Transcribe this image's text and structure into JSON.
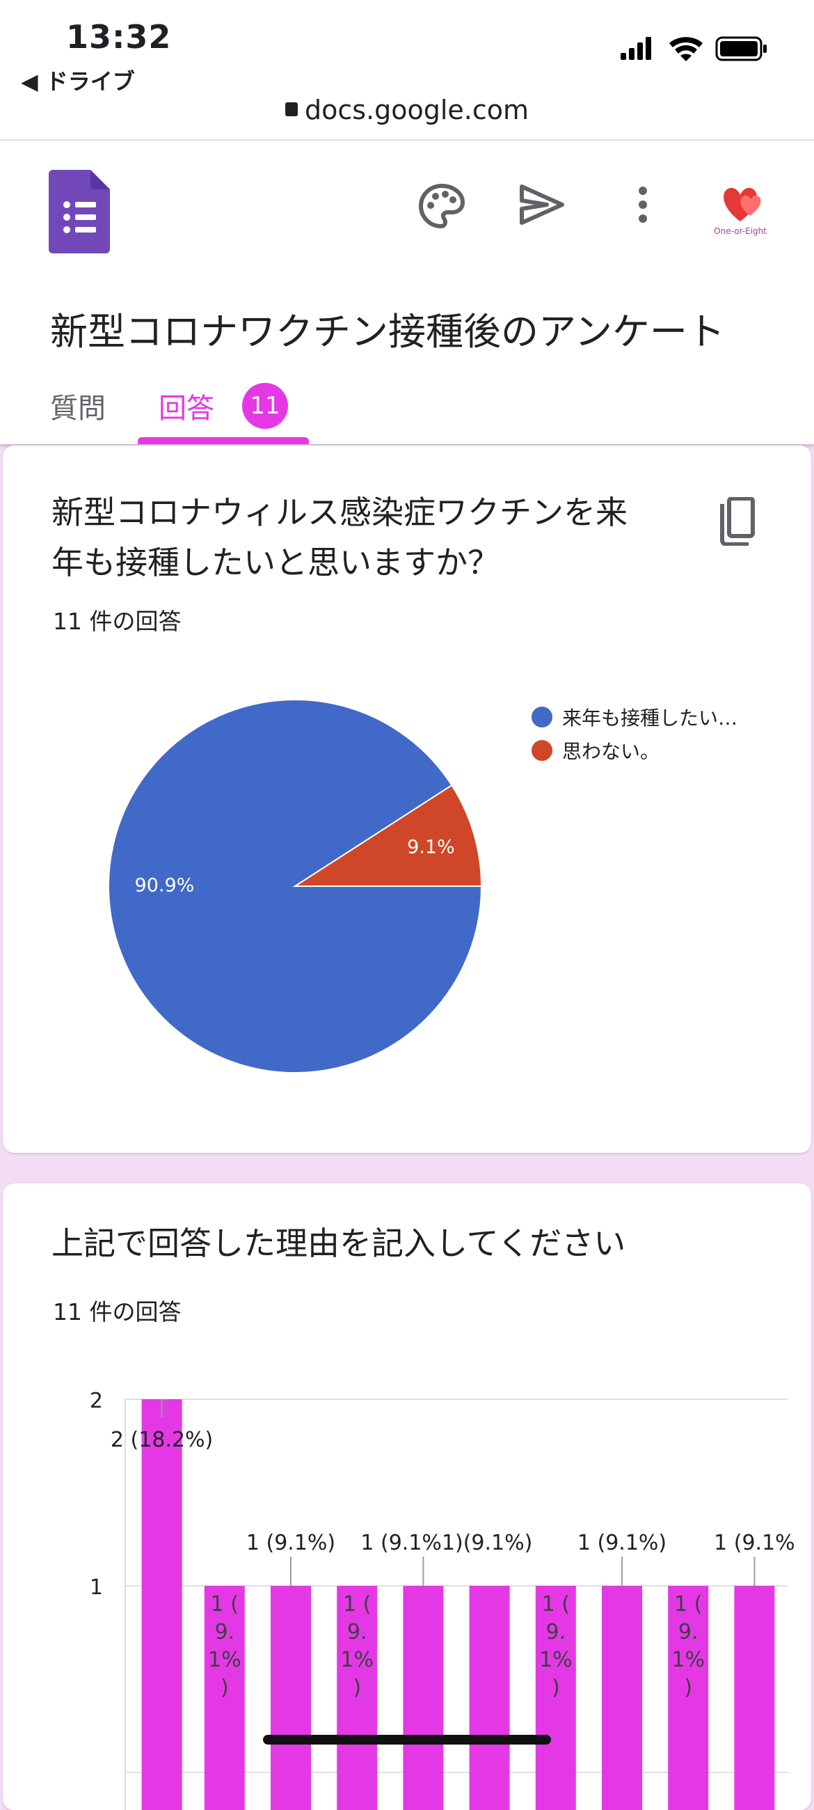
{
  "status_bar": {
    "time": "13:32",
    "back_app": "◀ ドライブ",
    "url": "docs.google.com"
  },
  "header": {
    "form_title": "新型コロナワクチン接種後のアンケート",
    "tabs": [
      {
        "label": "質問"
      },
      {
        "label": "回答"
      }
    ],
    "response_badge": "11",
    "avatar_text": "One-or-Eight",
    "colors": {
      "accent": "#e538e5",
      "form_icon": "#7248b9"
    },
    "icons": [
      "form-icon",
      "palette-icon",
      "send-icon",
      "more-vert-icon",
      "avatar",
      "copy-icon"
    ]
  },
  "card1": {
    "question": "新型コロナウィルス感染症ワクチンを来年も接種したいと思いますか？",
    "question_lines": [
      "新型コロナウィルス感染症ワクチンを来",
      "年も接種したいと思いますか？"
    ],
    "response_count": "11 件の回答"
  },
  "card2": {
    "question": "上記で回答した理由を記入してください",
    "response_count": "11 件の回答"
  },
  "chart_data": [
    {
      "type": "pie",
      "slices": [
        {
          "label": "来年も接種したい…",
          "value": 90.9,
          "display": "90.9%",
          "color": "#4169c8"
        },
        {
          "label": "思わない。",
          "value": 9.1,
          "display": "9.1%",
          "color": "#cf4728"
        }
      ],
      "legend_placement": "top-right"
    },
    {
      "type": "bar",
      "yticks": [
        "2",
        "1"
      ],
      "ylim": [
        0,
        2
      ],
      "bar_color": "#e538e5",
      "values": [
        2,
        1,
        1,
        1,
        1,
        1,
        1,
        1,
        1,
        1
      ],
      "labels": [
        "2 (18.2%)",
        "1 (9.1%)",
        "1 (9.1%)",
        "1 (9.1%)",
        "1 (9.1%)",
        "1 (9.1%)",
        "1 (9.1%)",
        "1 (9.1%)",
        "1 (9.1%)",
        "1 (9.1%)"
      ],
      "label_texts": {
        "bar0": "2 (18.2%)",
        "above1": "1 (9.1%)",
        "above2": "1 (9.1%1)(9.1%)",
        "above3": "1 (9.1%)",
        "above4": "1 (9.1%",
        "inside_lines": [
          "1 (",
          "9.",
          "1%",
          ")"
        ]
      },
      "grid": true
    }
  ]
}
